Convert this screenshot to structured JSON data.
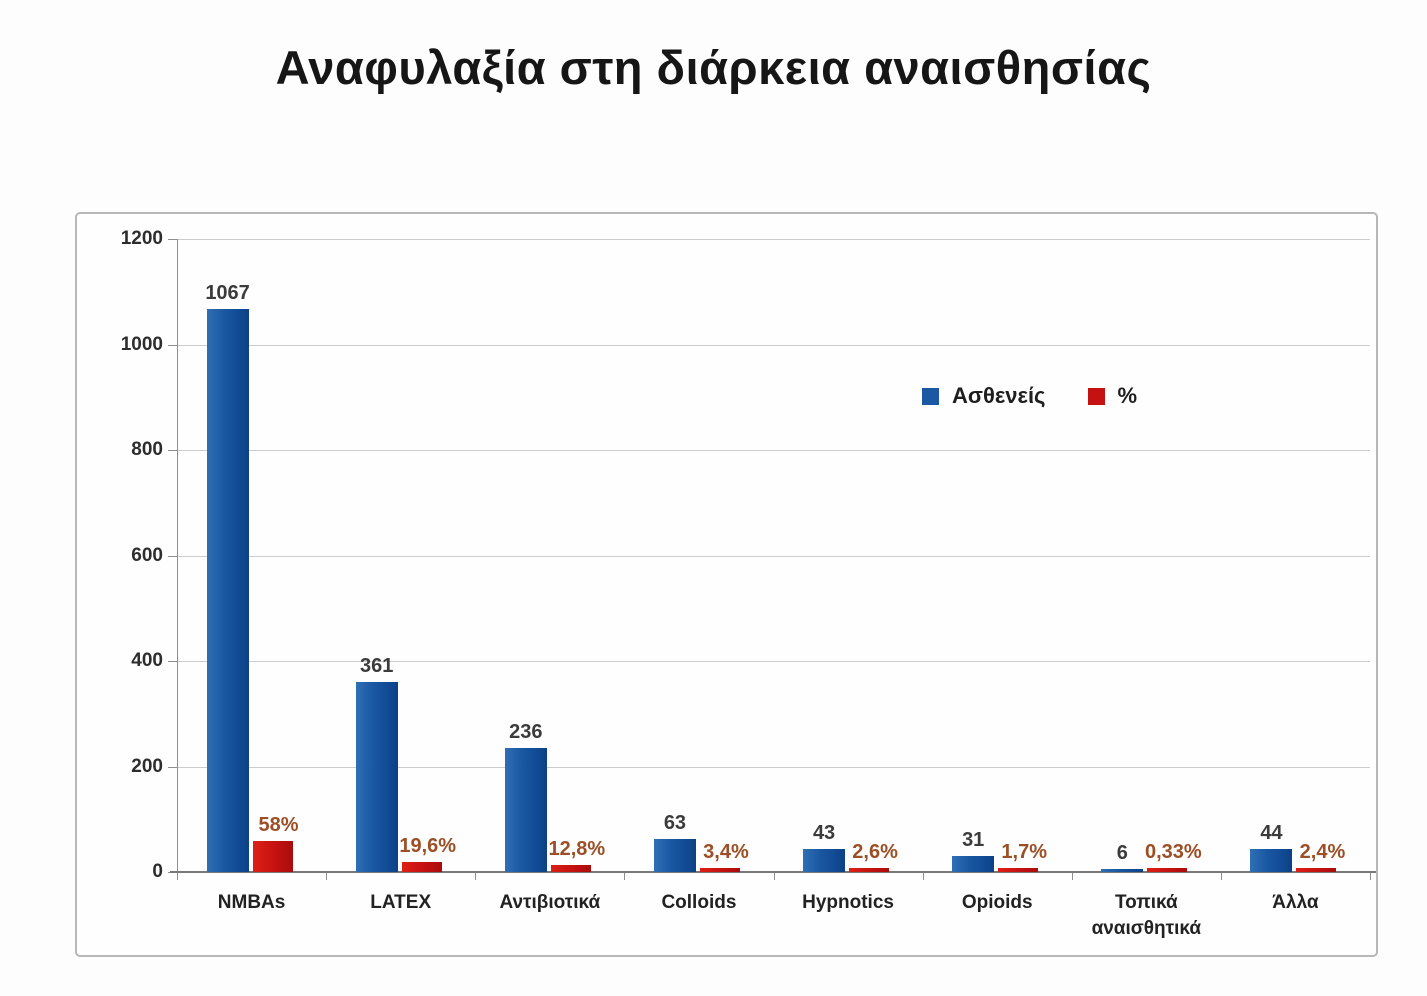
{
  "title": "Αναφυλαξία στη διάρκεια αναισθησίας",
  "legend": [
    {
      "label": "Ασθενείς",
      "color": "#1a58a3"
    },
    {
      "label": "%",
      "color": "#c51111"
    }
  ],
  "colors": {
    "patients_bar": "#1a58a3",
    "percent_bar": "#c51111",
    "percent_label_text": "#9c4f26",
    "value_label_text": "#3b3b3b",
    "gridline": "#cccccc",
    "chart_border": "#b7b7b7"
  },
  "chart_data": {
    "type": "bar",
    "title": "Αναφυλαξία στη διάρκεια αναισθησίας",
    "categories": [
      "NMBAs",
      "LATEX",
      "Αντιβιοτικά",
      "Colloids",
      "Hypnotics",
      "Opioids",
      "Τοπικά αναισθητικά",
      "Άλλα"
    ],
    "series": [
      {
        "name": "Ασθενείς",
        "color": "#1a58a3",
        "values": [
          1067,
          361,
          236,
          63,
          43,
          31,
          6,
          44
        ],
        "labels": [
          "1067",
          "361",
          "236",
          "63",
          "43",
          "31",
          "6",
          "44"
        ]
      },
      {
        "name": "%",
        "color": "#c51111",
        "values": [
          58,
          19.6,
          12.8,
          3.4,
          2.6,
          1.7,
          0.33,
          2.4
        ],
        "labels": [
          "58%",
          "19,6%",
          "12,8%",
          "3,4%",
          "2,6%",
          "1,7%",
          "0,33%",
          "2,4%"
        ]
      }
    ],
    "xlabel": "",
    "ylabel": "",
    "ylim": [
      0,
      1200
    ],
    "yticks": [
      0,
      200,
      400,
      600,
      800,
      1000,
      1200
    ],
    "grid": true,
    "legend_position": "inside-upper-right"
  }
}
